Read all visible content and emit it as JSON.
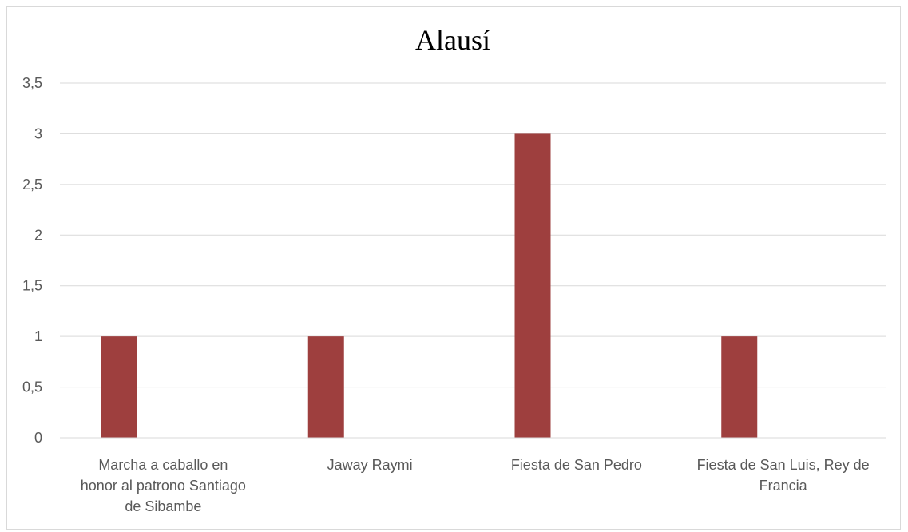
{
  "chart_data": {
    "type": "bar",
    "title": "Alausí",
    "categories": [
      "Marcha a caballo en honor al patrono Santiago de Sibambe",
      "Jaway Raymi",
      "Fiesta de San Pedro",
      "Fiesta de San Luis, Rey de Francia"
    ],
    "category_lines": [
      [
        "Marcha a caballo en",
        "honor al patrono Santiago",
        "de Sibambe"
      ],
      [
        "Jaway Raymi"
      ],
      [
        "Fiesta de San Pedro"
      ],
      [
        "Fiesta de San Luis, Rey de",
        "Francia"
      ]
    ],
    "values": [
      1,
      1,
      3,
      1
    ],
    "ylim": [
      0,
      3.5
    ],
    "yticks": [
      0,
      0.5,
      1,
      1.5,
      2,
      2.5,
      3,
      3.5
    ],
    "ytick_labels": [
      "0",
      "0,5",
      "1",
      "1,5",
      "2",
      "2,5",
      "3",
      "3,5"
    ],
    "grid": true,
    "legend": "none",
    "bar_color": "#9e3f3e",
    "grid_color": "#d9d9d9",
    "xlabel": "",
    "ylabel": ""
  }
}
